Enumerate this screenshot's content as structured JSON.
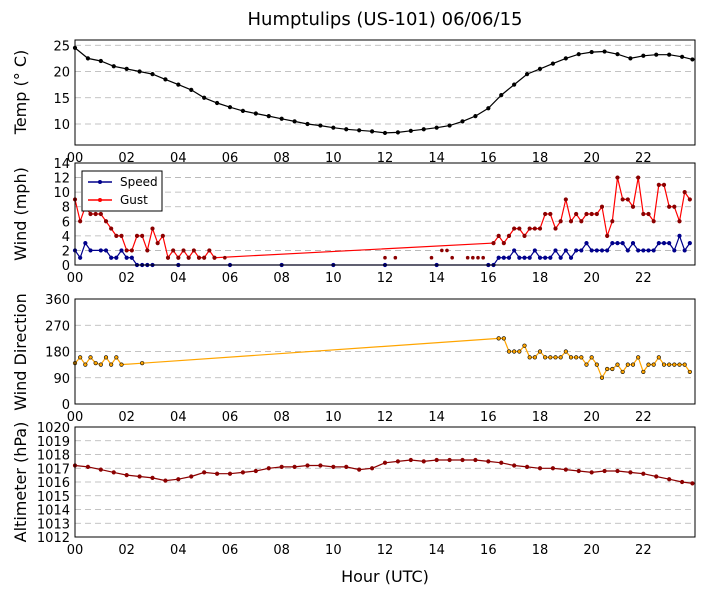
{
  "figure": {
    "title": "Humptulips (US-101) 06/06/15",
    "xlabel": "Hour (UTC)",
    "xticks": [
      "00",
      "02",
      "04",
      "06",
      "08",
      "10",
      "12",
      "14",
      "16",
      "18",
      "20",
      "22"
    ],
    "colors": {
      "temp": "#000000",
      "speed": "#00008b",
      "gust": "#ff0000",
      "gust_marker": "#8b0000",
      "direction": "#ffa500",
      "altimeter": "#8b0000",
      "grid": "#b0b0b0"
    }
  },
  "chart_data": [
    {
      "type": "line",
      "id": "temp",
      "ylabel": "Temp ($^\\circ$C)",
      "ylabel_display": "Temp (° C)",
      "ylim": [
        6,
        26
      ],
      "yticks": [
        "10",
        "15",
        "20",
        "25"
      ],
      "xlim": [
        0,
        24
      ],
      "series": [
        {
          "name": "Temp",
          "x": [
            0,
            0.5,
            1,
            1.5,
            2,
            2.5,
            3,
            3.5,
            4,
            4.5,
            5,
            5.5,
            6,
            6.5,
            7,
            7.5,
            8,
            8.5,
            9,
            9.5,
            10,
            10.5,
            11,
            11.5,
            12,
            12.5,
            13,
            13.5,
            14,
            14.5,
            15,
            15.5,
            16,
            16.5,
            17,
            17.5,
            18,
            18.5,
            19,
            19.5,
            20,
            20.5,
            21,
            21.5,
            22,
            22.5,
            23,
            23.5,
            23.9
          ],
          "values": [
            24.5,
            22.5,
            22,
            21,
            20.5,
            20,
            19.5,
            18.5,
            17.5,
            16.5,
            15,
            14,
            13.2,
            12.5,
            12,
            11.5,
            11,
            10.5,
            10,
            9.7,
            9.3,
            9,
            8.8,
            8.6,
            8.3,
            8.4,
            8.7,
            9,
            9.3,
            9.7,
            10.5,
            11.5,
            13,
            15.5,
            17.5,
            19.5,
            20.5,
            21.5,
            22.5,
            23.3,
            23.7,
            23.8,
            23.3,
            22.5,
            23,
            23.2,
            23.2,
            22.8,
            22.3
          ]
        }
      ]
    },
    {
      "type": "line",
      "id": "wind",
      "ylabel": "Wind (mph)",
      "ylim": [
        0,
        14
      ],
      "yticks": [
        "0",
        "2",
        "4",
        "6",
        "8",
        "10",
        "12",
        "14"
      ],
      "xlim": [
        0,
        24
      ],
      "legend": {
        "location": "upper-left",
        "entries": [
          "Speed",
          "Gust"
        ]
      },
      "series": [
        {
          "name": "Speed",
          "x": [
            0,
            0.2,
            0.4,
            0.6,
            1,
            1.2,
            1.4,
            1.6,
            1.8,
            2,
            2.2,
            2.4,
            2.6,
            2.8,
            3,
            4,
            6,
            8,
            10,
            12,
            14,
            16,
            16.2,
            16.4,
            16.6,
            16.8,
            17,
            17.2,
            17.4,
            17.6,
            17.8,
            18,
            18.2,
            18.4,
            18.6,
            18.8,
            19,
            19.2,
            19.4,
            19.6,
            19.8,
            20,
            20.2,
            20.4,
            20.6,
            20.8,
            21,
            21.2,
            21.4,
            21.6,
            21.8,
            22,
            22.2,
            22.4,
            22.6,
            22.8,
            23,
            23.2,
            23.4,
            23.6,
            23.8
          ],
          "values": [
            2,
            1,
            3,
            2,
            2,
            2,
            1,
            1,
            2,
            1,
            1,
            0,
            0,
            0,
            0,
            0,
            0,
            0,
            0,
            0,
            0,
            0,
            0,
            1,
            1,
            1,
            2,
            1,
            1,
            1,
            2,
            1,
            1,
            1,
            2,
            1,
            2,
            1,
            2,
            2,
            3,
            2,
            2,
            2,
            2,
            3,
            3,
            3,
            2,
            3,
            2,
            2,
            2,
            2,
            3,
            3,
            3,
            2,
            4,
            2,
            3
          ]
        },
        {
          "name": "Gust",
          "x": [
            0,
            0.2,
            0.4,
            0.6,
            0.8,
            1,
            1.2,
            1.4,
            1.6,
            1.8,
            2,
            2.2,
            2.4,
            2.6,
            2.8,
            3,
            3.2,
            3.4,
            3.6,
            3.8,
            4,
            4.2,
            4.4,
            4.6,
            4.8,
            5,
            5.2,
            5.4,
            16.2,
            16.4,
            16.6,
            16.8,
            17,
            17.2,
            17.4,
            17.6,
            17.8,
            18,
            18.2,
            18.4,
            18.6,
            18.8,
            19,
            19.2,
            19.4,
            19.6,
            19.8,
            20,
            20.2,
            20.4,
            20.6,
            20.8,
            21,
            21.2,
            21.4,
            21.6,
            21.8,
            22,
            22.2,
            22.4,
            22.6,
            22.8,
            23,
            23.2,
            23.4,
            23.6,
            23.8
          ],
          "values": [
            9,
            6,
            8,
            7,
            7,
            7,
            6,
            5,
            4,
            4,
            2,
            2,
            4,
            4,
            2,
            5,
            3,
            4,
            1,
            2,
            1,
            2,
            1,
            2,
            1,
            1,
            2,
            1,
            3,
            4,
            3,
            4,
            5,
            5,
            4,
            5,
            5,
            5,
            7,
            7,
            5,
            6,
            9,
            6,
            7,
            6,
            7,
            7,
            7,
            8,
            4,
            6,
            12,
            9,
            9,
            8,
            12,
            7,
            7,
            6,
            11,
            11,
            8,
            8,
            6,
            10,
            9
          ]
        }
      ],
      "isolated_gust_points": {
        "x": [
          5.8,
          12,
          12.4,
          13.8,
          14.2,
          14.4,
          14.6,
          15.2,
          15.4,
          15.6,
          15.8
        ],
        "values": [
          1,
          1,
          1,
          1,
          2,
          2,
          1,
          1,
          1,
          1,
          1
        ]
      }
    },
    {
      "type": "scatter",
      "id": "direction",
      "ylabel": "Wind Direction",
      "ylim": [
        0,
        360
      ],
      "yticks": [
        "0",
        "90",
        "180",
        "270",
        "360"
      ],
      "xlim": [
        0,
        24
      ],
      "series": [
        {
          "name": "Wind Direction",
          "x": [
            0,
            0.2,
            0.4,
            0.6,
            0.8,
            1,
            1.2,
            1.4,
            1.6,
            1.8,
            2.6,
            16.4,
            16.6,
            16.8,
            17,
            17.2,
            17.4,
            17.6,
            17.8,
            18,
            18.2,
            18.4,
            18.6,
            18.8,
            19,
            19.2,
            19.4,
            19.6,
            19.8,
            20,
            20.2,
            20.4,
            20.6,
            20.8,
            21,
            21.2,
            21.4,
            21.6,
            21.8,
            22,
            22.2,
            22.4,
            22.6,
            22.8,
            23,
            23.2,
            23.4,
            23.6,
            23.8
          ],
          "values": [
            140,
            160,
            135,
            160,
            140,
            135,
            160,
            135,
            160,
            135,
            140,
            225,
            225,
            180,
            180,
            180,
            200,
            160,
            160,
            180,
            160,
            160,
            160,
            160,
            180,
            160,
            160,
            160,
            135,
            160,
            135,
            90,
            120,
            120,
            135,
            110,
            135,
            135,
            160,
            110,
            135,
            135,
            160,
            135,
            135,
            135,
            135,
            135,
            110
          ]
        }
      ]
    },
    {
      "type": "line",
      "id": "altimeter",
      "ylabel": "Altimeter (hPa)",
      "ylim": [
        1012,
        1020
      ],
      "yticks": [
        "1012",
        "1013",
        "1014",
        "1015",
        "1016",
        "1017",
        "1018",
        "1019",
        "1020"
      ],
      "xlim": [
        0,
        24
      ],
      "series": [
        {
          "name": "Altimeter",
          "x": [
            0,
            0.5,
            1,
            1.5,
            2,
            2.5,
            3,
            3.5,
            4,
            4.5,
            5,
            5.5,
            6,
            6.5,
            7,
            7.5,
            8,
            8.5,
            9,
            9.5,
            10,
            10.5,
            11,
            11.5,
            12,
            12.5,
            13,
            13.5,
            14,
            14.5,
            15,
            15.5,
            16,
            16.5,
            17,
            17.5,
            18,
            18.5,
            19,
            19.5,
            20,
            20.5,
            21,
            21.5,
            22,
            22.5,
            23,
            23.5,
            23.9
          ],
          "values": [
            1017.2,
            1017.1,
            1016.9,
            1016.7,
            1016.5,
            1016.4,
            1016.3,
            1016.1,
            1016.2,
            1016.4,
            1016.7,
            1016.6,
            1016.6,
            1016.7,
            1016.8,
            1017.0,
            1017.1,
            1017.1,
            1017.2,
            1017.2,
            1017.1,
            1017.1,
            1016.9,
            1017.0,
            1017.4,
            1017.5,
            1017.6,
            1017.5,
            1017.6,
            1017.6,
            1017.6,
            1017.6,
            1017.5,
            1017.4,
            1017.2,
            1017.1,
            1017.0,
            1017.0,
            1016.9,
            1016.8,
            1016.7,
            1016.8,
            1016.8,
            1016.7,
            1016.6,
            1016.4,
            1016.2,
            1016.0,
            1015.9
          ]
        }
      ]
    }
  ]
}
